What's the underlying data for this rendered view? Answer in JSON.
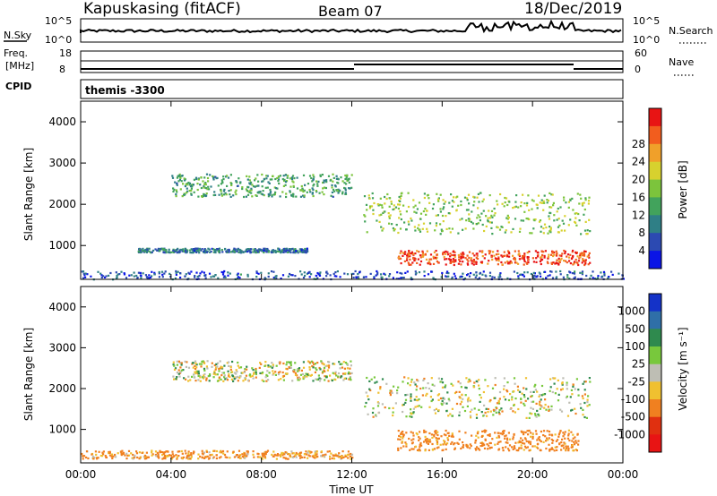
{
  "header": {
    "station": "Kapuskasing (fitACF)",
    "beam": "Beam 07",
    "date": "18/Dec/2019"
  },
  "side_labels": {
    "nsky": "N.Sky",
    "nsearch": "N.Search",
    "freq_line1": "Freq.",
    "freq_line2": "[MHz]",
    "nave": "Nave",
    "cpid": "CPID",
    "cpid_value": "themis -3300"
  },
  "top_axes": {
    "nsky_ticks": [
      "10^5",
      "10^0"
    ],
    "nsearch_ticks": [
      "10^5",
      "10^0"
    ],
    "freq_ticks": [
      "18",
      "8"
    ],
    "nave_ticks": [
      "60",
      "0"
    ]
  },
  "chart_data": [
    {
      "type": "heatmap",
      "title": "",
      "ylabel": "Slant Range [km]",
      "xlabel": "",
      "xlim": [
        0,
        24
      ],
      "ylim": [
        180,
        4500
      ],
      "y_ticks": [
        "1000",
        "2000",
        "3000",
        "4000"
      ],
      "colorbar": {
        "label": "Power [dB]",
        "ticks": [
          "4",
          "8",
          "12",
          "16",
          "20",
          "24",
          "28"
        ],
        "colors": [
          "#0a14e6",
          "#2c4ab2",
          "#2f7f86",
          "#42a35c",
          "#7cc43c",
          "#d7d12e",
          "#f0a02a",
          "#f25d1e",
          "#e81414"
        ]
      },
      "regions": [
        {
          "t0": 4.0,
          "t1": 12.0,
          "r0": 2200,
          "r1": 2750,
          "value": 12
        },
        {
          "t0": 12.5,
          "t1": 22.5,
          "r0": 1300,
          "r1": 2300,
          "value": 16
        },
        {
          "t0": 14.0,
          "t1": 22.5,
          "r0": 550,
          "r1": 900,
          "value": 28
        },
        {
          "t0": 0.0,
          "t1": 24.0,
          "r0": 200,
          "r1": 400,
          "value": 6
        },
        {
          "t0": 2.5,
          "t1": 10.0,
          "r0": 850,
          "r1": 950,
          "value": 8
        }
      ]
    },
    {
      "type": "heatmap",
      "title": "",
      "ylabel": "Slant Range [km]",
      "xlabel": "Time UT",
      "xlim": [
        0,
        24
      ],
      "ylim": [
        180,
        4500
      ],
      "x_ticks": [
        "00:00",
        "04:00",
        "08:00",
        "12:00",
        "16:00",
        "20:00",
        "00:00"
      ],
      "y_ticks": [
        "1000",
        "2000",
        "3000",
        "4000"
      ],
      "colorbar": {
        "label": "Velocity [m s^-1]",
        "ticks": [
          "1000",
          "500",
          "100",
          "25",
          "-25",
          "-100",
          "-500",
          "-1000"
        ],
        "colors": [
          "#1432c8",
          "#2f6fa8",
          "#2f8a4e",
          "#78c83c",
          "#bebeb4",
          "#f0c030",
          "#f08020",
          "#e03010",
          "#e81414"
        ]
      },
      "regions": [
        {
          "t0": 4.0,
          "t1": 12.0,
          "r0": 2200,
          "r1": 2700,
          "value": 0
        },
        {
          "t0": 12.5,
          "t1": 22.5,
          "r0": 1300,
          "r1": 2300,
          "value": 0
        },
        {
          "t0": 14.0,
          "t1": 22.0,
          "r0": 500,
          "r1": 1000,
          "value": -200
        },
        {
          "t0": 0.0,
          "t1": 12.0,
          "r0": 300,
          "r1": 500,
          "value": -150
        }
      ]
    }
  ]
}
